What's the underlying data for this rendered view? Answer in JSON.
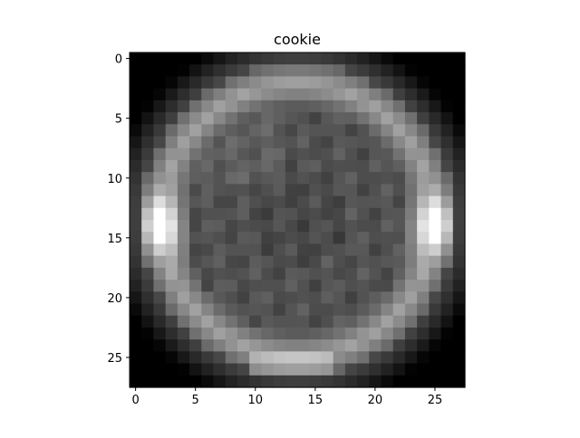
{
  "chart_data": {
    "type": "heatmap",
    "title": "cookie",
    "xlabel": "",
    "ylabel": "",
    "colormap": "gray",
    "rows": 28,
    "cols": 28,
    "xlim": [
      -0.5,
      27.5
    ],
    "ylim": [
      27.5,
      -0.5
    ],
    "x_ticks": [
      0,
      5,
      10,
      15,
      20,
      25
    ],
    "y_ticks": [
      0,
      5,
      10,
      15,
      20,
      25
    ],
    "x_tick_labels": [
      "0",
      "5",
      "10",
      "15",
      "20",
      "25"
    ],
    "y_tick_labels": [
      "0",
      "5",
      "10",
      "15",
      "20",
      "25"
    ],
    "grid": false,
    "legend": "none",
    "description": "Grayscale image of a round cookie: a bright ring (brightest at rows 12-16 near columns 2 and 25) surrounding a darker gray textured interior on a black background."
  }
}
